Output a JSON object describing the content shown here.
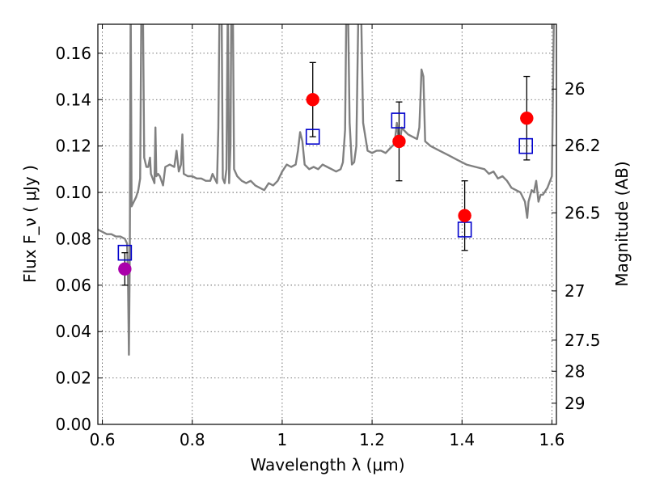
{
  "chart_data": {
    "type": "scatter",
    "xlabel": "Wavelength  λ (μm)",
    "ylabel": "Flux  F_ν  ( μJy )",
    "y2label": "Magnitude (AB)",
    "xlim": [
      0.59,
      1.61
    ],
    "ylim": [
      0.0,
      0.1725
    ],
    "grid": true,
    "x_ticks": [
      {
        "value": 0.6,
        "label": "0.6"
      },
      {
        "value": 0.8,
        "label": "0.8"
      },
      {
        "value": 1.0,
        "label": "1"
      },
      {
        "value": 1.2,
        "label": "1.2"
      },
      {
        "value": 1.4,
        "label": "1.4"
      },
      {
        "value": 1.6,
        "label": "1.6"
      }
    ],
    "y_ticks": [
      {
        "value": 0.0,
        "label": "0.00"
      },
      {
        "value": 0.02,
        "label": "0.02"
      },
      {
        "value": 0.04,
        "label": "0.04"
      },
      {
        "value": 0.06,
        "label": "0.06"
      },
      {
        "value": 0.08,
        "label": "0.08"
      },
      {
        "value": 0.1,
        "label": "0.10"
      },
      {
        "value": 0.12,
        "label": "0.12"
      },
      {
        "value": 0.14,
        "label": "0.14"
      },
      {
        "value": 0.16,
        "label": "0.16"
      }
    ],
    "y2_ticks": [
      {
        "mag": 26,
        "label": "26"
      },
      {
        "mag": 26.2,
        "label": "26.2"
      },
      {
        "mag": 26.5,
        "label": "26.5"
      },
      {
        "mag": 27,
        "label": "27"
      },
      {
        "mag": 27.5,
        "label": "27.5"
      },
      {
        "mag": 28,
        "label": "28"
      },
      {
        "mag": 29,
        "label": "29"
      }
    ],
    "colors": {
      "spectrum": "#808080",
      "observed": "#ff0000",
      "observed_alt": "#aa00aa",
      "model": "#0000cc",
      "errorbar": "#000000"
    },
    "series": [
      {
        "kind": "line",
        "points": [
          [
            0.59,
            0.084
          ],
          [
            0.6,
            0.083
          ],
          [
            0.61,
            0.082
          ],
          [
            0.62,
            0.082
          ],
          [
            0.63,
            0.081
          ],
          [
            0.64,
            0.081
          ],
          [
            0.65,
            0.08
          ],
          [
            0.655,
            0.078
          ],
          [
            0.657,
            0.065
          ],
          [
            0.659,
            0.03
          ],
          [
            0.661,
            0.074
          ],
          [
            0.663,
            0.185
          ],
          [
            0.665,
            0.094
          ],
          [
            0.67,
            0.096
          ],
          [
            0.675,
            0.098
          ],
          [
            0.68,
            0.101
          ],
          [
            0.684,
            0.106
          ],
          [
            0.687,
            0.185
          ],
          [
            0.69,
            0.185
          ],
          [
            0.693,
            0.115
          ],
          [
            0.698,
            0.111
          ],
          [
            0.702,
            0.111
          ],
          [
            0.706,
            0.115
          ],
          [
            0.708,
            0.108
          ],
          [
            0.712,
            0.106
          ],
          [
            0.716,
            0.104
          ],
          [
            0.718,
            0.128
          ],
          [
            0.72,
            0.107
          ],
          [
            0.724,
            0.108
          ],
          [
            0.728,
            0.107
          ],
          [
            0.735,
            0.103
          ],
          [
            0.74,
            0.111
          ],
          [
            0.75,
            0.112
          ],
          [
            0.76,
            0.111
          ],
          [
            0.765,
            0.118
          ],
          [
            0.77,
            0.109
          ],
          [
            0.775,
            0.112
          ],
          [
            0.778,
            0.125
          ],
          [
            0.781,
            0.108
          ],
          [
            0.79,
            0.107
          ],
          [
            0.8,
            0.107
          ],
          [
            0.81,
            0.106
          ],
          [
            0.82,
            0.106
          ],
          [
            0.83,
            0.105
          ],
          [
            0.84,
            0.105
          ],
          [
            0.845,
            0.108
          ],
          [
            0.85,
            0.106
          ],
          [
            0.855,
            0.104
          ],
          [
            0.858,
            0.128
          ],
          [
            0.861,
            0.185
          ],
          [
            0.865,
            0.185
          ],
          [
            0.868,
            0.106
          ],
          [
            0.872,
            0.104
          ],
          [
            0.876,
            0.11
          ],
          [
            0.879,
            0.185
          ],
          [
            0.882,
            0.104
          ],
          [
            0.885,
            0.12
          ],
          [
            0.887,
            0.185
          ],
          [
            0.89,
            0.185
          ],
          [
            0.893,
            0.11
          ],
          [
            0.9,
            0.107
          ],
          [
            0.91,
            0.105
          ],
          [
            0.92,
            0.104
          ],
          [
            0.93,
            0.105
          ],
          [
            0.94,
            0.103
          ],
          [
            0.95,
            0.102
          ],
          [
            0.96,
            0.101
          ],
          [
            0.97,
            0.104
          ],
          [
            0.98,
            0.103
          ],
          [
            0.99,
            0.105
          ],
          [
            1.0,
            0.109
          ],
          [
            1.01,
            0.112
          ],
          [
            1.02,
            0.111
          ],
          [
            1.03,
            0.112
          ],
          [
            1.035,
            0.118
          ],
          [
            1.04,
            0.126
          ],
          [
            1.045,
            0.122
          ],
          [
            1.05,
            0.112
          ],
          [
            1.06,
            0.11
          ],
          [
            1.07,
            0.111
          ],
          [
            1.08,
            0.11
          ],
          [
            1.09,
            0.112
          ],
          [
            1.1,
            0.111
          ],
          [
            1.11,
            0.11
          ],
          [
            1.12,
            0.109
          ],
          [
            1.13,
            0.11
          ],
          [
            1.135,
            0.113
          ],
          [
            1.14,
            0.127
          ],
          [
            1.143,
            0.185
          ],
          [
            1.146,
            0.185
          ],
          [
            1.15,
            0.13
          ],
          [
            1.155,
            0.112
          ],
          [
            1.16,
            0.113
          ],
          [
            1.165,
            0.12
          ],
          [
            1.17,
            0.185
          ],
          [
            1.175,
            0.185
          ],
          [
            1.18,
            0.13
          ],
          [
            1.19,
            0.118
          ],
          [
            1.2,
            0.117
          ],
          [
            1.21,
            0.118
          ],
          [
            1.22,
            0.118
          ],
          [
            1.23,
            0.117
          ],
          [
            1.24,
            0.119
          ],
          [
            1.25,
            0.121
          ],
          [
            1.255,
            0.13
          ],
          [
            1.258,
            0.125
          ],
          [
            1.262,
            0.122
          ],
          [
            1.266,
            0.128
          ],
          [
            1.27,
            0.127
          ],
          [
            1.28,
            0.125
          ],
          [
            1.29,
            0.124
          ],
          [
            1.3,
            0.123
          ],
          [
            1.305,
            0.128
          ],
          [
            1.31,
            0.153
          ],
          [
            1.314,
            0.15
          ],
          [
            1.318,
            0.122
          ],
          [
            1.33,
            0.12
          ],
          [
            1.35,
            0.118
          ],
          [
            1.37,
            0.116
          ],
          [
            1.39,
            0.114
          ],
          [
            1.41,
            0.112
          ],
          [
            1.43,
            0.111
          ],
          [
            1.45,
            0.11
          ],
          [
            1.46,
            0.108
          ],
          [
            1.47,
            0.109
          ],
          [
            1.48,
            0.106
          ],
          [
            1.49,
            0.107
          ],
          [
            1.5,
            0.105
          ],
          [
            1.51,
            0.102
          ],
          [
            1.52,
            0.101
          ],
          [
            1.53,
            0.1
          ],
          [
            1.54,
            0.096
          ],
          [
            1.545,
            0.089
          ],
          [
            1.548,
            0.096
          ],
          [
            1.555,
            0.101
          ],
          [
            1.56,
            0.1
          ],
          [
            1.565,
            0.105
          ],
          [
            1.57,
            0.096
          ],
          [
            1.575,
            0.099
          ],
          [
            1.58,
            0.099
          ],
          [
            1.59,
            0.102
          ],
          [
            1.6,
            0.107
          ],
          [
            1.605,
            0.185
          ]
        ]
      },
      {
        "kind": "errorbar",
        "points": [
          {
            "x": 0.65,
            "y": 0.067,
            "yerr": 0.007,
            "color_key": "observed_alt"
          },
          {
            "x": 1.068,
            "y": 0.14,
            "yerr": 0.016,
            "color_key": "observed"
          },
          {
            "x": 1.26,
            "y": 0.122,
            "yerr": 0.017,
            "color_key": "observed"
          },
          {
            "x": 1.406,
            "y": 0.09,
            "yerr": 0.015,
            "color_key": "observed"
          },
          {
            "x": 1.544,
            "y": 0.132,
            "yerr": 0.018,
            "color_key": "observed"
          }
        ]
      },
      {
        "kind": "scatter",
        "marker": "square",
        "points": [
          [
            0.65,
            0.074
          ],
          [
            1.068,
            0.124
          ],
          [
            1.258,
            0.131
          ],
          [
            1.406,
            0.084
          ],
          [
            1.542,
            0.12
          ]
        ]
      }
    ]
  }
}
